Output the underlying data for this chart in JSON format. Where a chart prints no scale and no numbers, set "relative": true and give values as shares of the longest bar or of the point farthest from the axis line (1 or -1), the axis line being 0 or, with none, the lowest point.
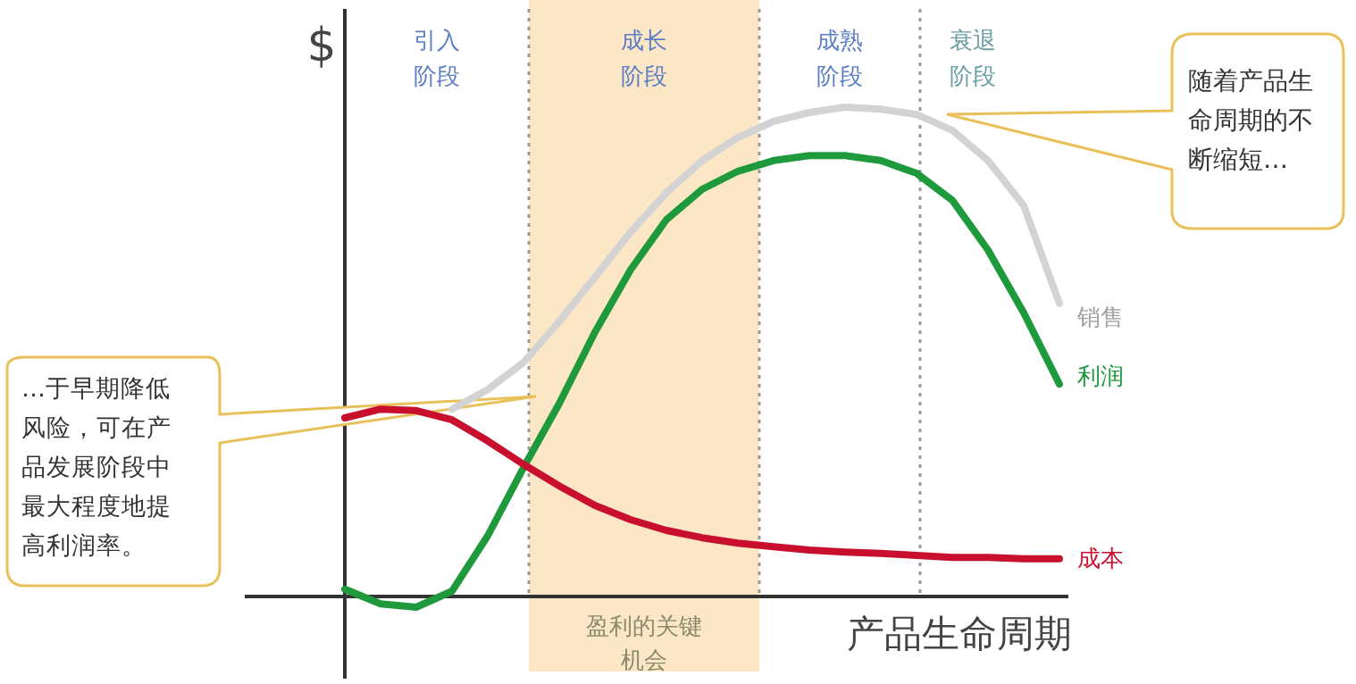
{
  "chart_data": {
    "type": "line",
    "relative": true,
    "ylabel": "$",
    "xlabel": "产品生命周期",
    "categories": [
      null,
      null,
      null,
      null,
      null,
      null,
      null,
      null,
      null,
      null,
      null,
      null,
      null,
      null,
      null,
      null,
      null,
      null,
      null,
      null,
      null
    ],
    "series": [
      {
        "name": "销售",
        "color": "#d3d3d3",
        "values": [
          null,
          null,
          null,
          0.383,
          0.423,
          0.478,
          0.562,
          0.653,
          0.745,
          0.825,
          0.891,
          0.938,
          0.971,
          0.989,
          1.0,
          0.996,
          0.985,
          0.953,
          0.891,
          0.799,
          0.599
        ]
      },
      {
        "name": "利润",
        "color": "#1e9a3c",
        "values": [
          0.015,
          -0.015,
          -0.022,
          0.011,
          0.124,
          0.263,
          0.394,
          0.54,
          0.668,
          0.77,
          0.832,
          0.869,
          0.891,
          0.901,
          0.901,
          0.891,
          0.865,
          0.81,
          0.708,
          0.58,
          0.434
        ]
      },
      {
        "name": "成本",
        "color": "#c8102e",
        "values": [
          0.365,
          0.383,
          0.38,
          0.361,
          0.318,
          0.27,
          0.226,
          0.186,
          0.157,
          0.135,
          0.12,
          0.109,
          0.102,
          0.095,
          0.091,
          0.088,
          0.084,
          0.08,
          0.08,
          0.077,
          0.077
        ]
      }
    ],
    "annotations": [
      "…于早期降低风险，可在产品发展阶段中最大程度地提高利润率。",
      "随着产品生命周期的不断缩短…",
      "盈利的关键机会",
      "引入阶段",
      "成长阶段",
      "成熟阶段",
      "衰退阶段"
    ],
    "legend": false,
    "grid": false,
    "marker": "none",
    "line_style": "solid"
  }
}
